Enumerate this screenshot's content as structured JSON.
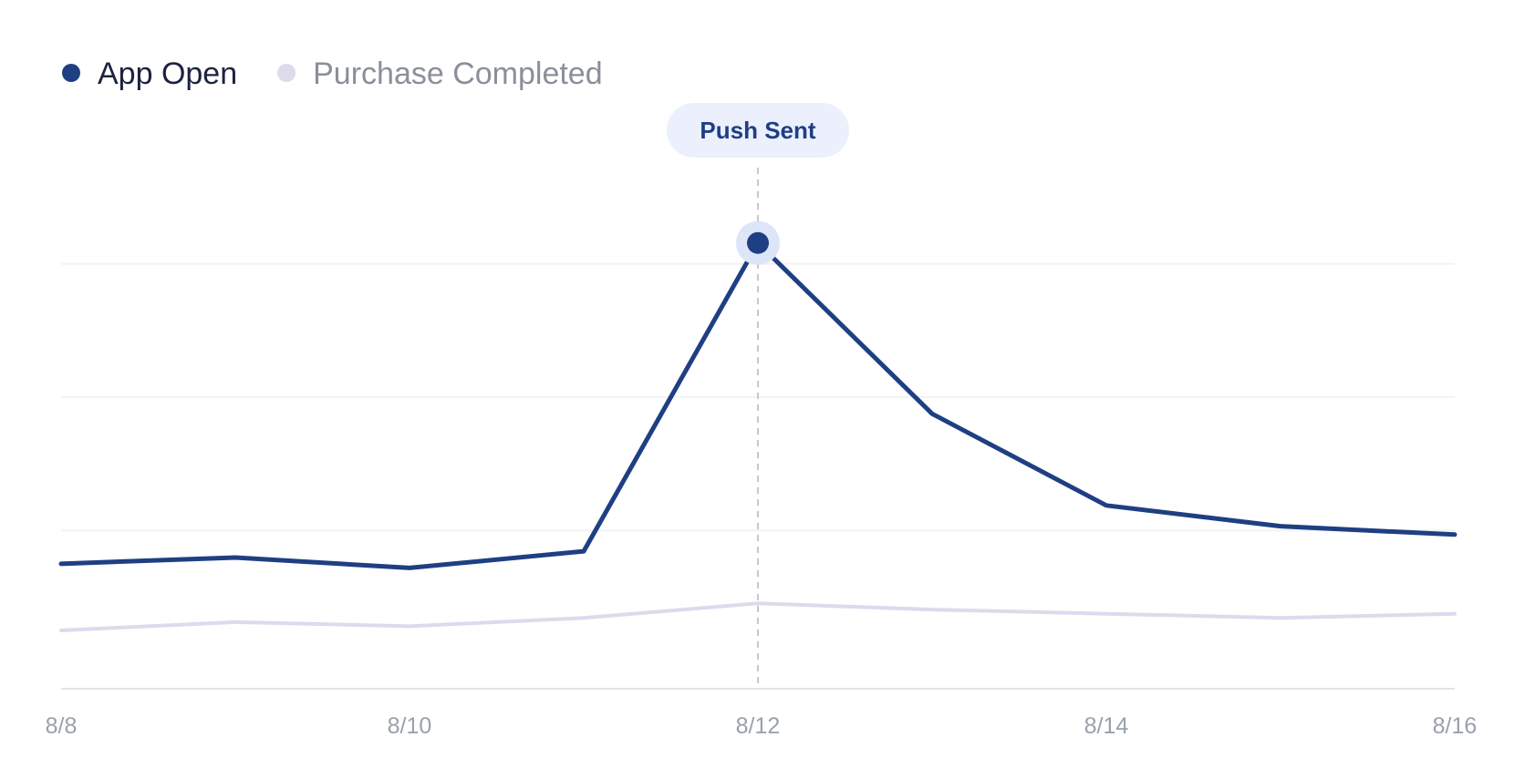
{
  "chart_data": {
    "type": "line",
    "x": [
      "8/8",
      "8/9",
      "8/10",
      "8/11",
      "8/12",
      "8/13",
      "8/14",
      "8/15",
      "8/16"
    ],
    "x_tick_labels": [
      "8/8",
      "8/10",
      "8/12",
      "8/14",
      "8/16"
    ],
    "series": [
      {
        "name": "App Open",
        "color": "#1f3f83",
        "values": [
          30,
          31.5,
          29,
          33,
          107,
          66,
          44,
          39,
          37
        ]
      },
      {
        "name": "Purchase Completed",
        "color": "#dcdaec",
        "values": [
          14,
          16,
          15,
          17,
          20.5,
          19,
          18,
          17,
          18
        ]
      }
    ],
    "ylim": [
      0,
      110
    ],
    "grid": true,
    "legend_position": "top-left",
    "title": "",
    "xlabel": "",
    "ylabel": "",
    "annotation": {
      "label": "Push Sent",
      "x": "8/12",
      "series": "App Open",
      "color": "#1f3f83",
      "background": "#ebf0fc"
    },
    "grid_color": "#f1f2f4",
    "axis_color": "#e2e3ea",
    "tick_color": "#9aa1ad",
    "legend_active_text_color": "#1c2340",
    "legend_inactive_text_color": "#8a8f9a"
  }
}
